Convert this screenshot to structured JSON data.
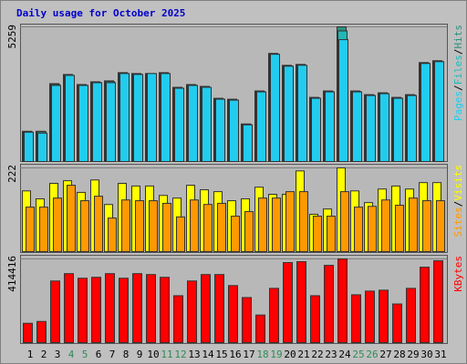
{
  "chart_data": [
    {
      "type": "bar",
      "title": "Daily usage for October 2025",
      "title_color": "#0000cc",
      "ylim": [
        0,
        5259
      ],
      "yticks": [
        5259
      ],
      "grid": true,
      "legend_separator": "/",
      "series": [
        {
          "name": "Hits",
          "color": "#2f8f7f",
          "values": [
            1181,
            1181,
            3041,
            3399,
            3006,
            3113,
            3149,
            3471,
            3435,
            3435,
            3471,
            2898,
            3006,
            2934,
            2469,
            2433,
            1467,
            2755,
            4222,
            3757,
            3793,
            2505,
            2755,
            5259,
            2755,
            2612,
            2684,
            2505,
            2612,
            3864,
            3936
          ]
        },
        {
          "name": "Files",
          "color": "#1fb8b8",
          "values": [
            1160,
            1160,
            3010,
            3360,
            2980,
            3090,
            3120,
            3440,
            3410,
            3410,
            3440,
            2870,
            2980,
            2900,
            2440,
            2400,
            1450,
            2730,
            4190,
            3730,
            3760,
            2480,
            2730,
            5100,
            2730,
            2590,
            2660,
            2480,
            2590,
            3840,
            3900
          ]
        },
        {
          "name": "Pages",
          "color": "#22ccee",
          "values": [
            1145,
            1109,
            2970,
            3363,
            2970,
            3077,
            3077,
            3435,
            3399,
            3435,
            3435,
            2862,
            2970,
            2898,
            2433,
            2397,
            1431,
            2719,
            4186,
            3721,
            3757,
            2469,
            2719,
            4759,
            2719,
            2576,
            2648,
            2469,
            2576,
            3828,
            3900
          ]
        }
      ]
    },
    {
      "type": "bar",
      "ylim": [
        0,
        222
      ],
      "yticks": [
        222
      ],
      "grid": true,
      "legend_separator": "/",
      "series": [
        {
          "name": "Visits",
          "color": "#ffff00",
          "values": [
            161,
            140,
            181,
            188,
            157,
            190,
            125,
            181,
            174,
            174,
            149,
            142,
            176,
            164,
            159,
            135,
            140,
            171,
            152,
            152,
            214,
            99,
            113,
            222,
            161,
            130,
            166,
            174,
            166,
            183,
            183
          ]
        },
        {
          "name": "Sites",
          "color": "#ff9900",
          "values": [
            118,
            118,
            142,
            176,
            135,
            147,
            89,
            137,
            135,
            135,
            128,
            92,
            137,
            125,
            128,
            94,
            106,
            142,
            142,
            159,
            159,
            94,
            94,
            159,
            118,
            120,
            137,
            123,
            142,
            135,
            135
          ]
        }
      ]
    },
    {
      "type": "bar",
      "ylim": [
        0,
        414416
      ],
      "yticks": [
        414416
      ],
      "grid": true,
      "categories": [
        "1",
        "2",
        "3",
        "4",
        "5",
        "6",
        "7",
        "8",
        "9",
        "10",
        "11",
        "12",
        "13",
        "14",
        "15",
        "16",
        "17",
        "18",
        "19",
        "20",
        "21",
        "22",
        "23",
        "24",
        "25",
        "26",
        "27",
        "28",
        "29",
        "30",
        "31"
      ],
      "category_colors": [
        "#000000",
        "#000000",
        "#000000",
        "#2e8b57",
        "#2e8b57",
        "#000000",
        "#000000",
        "#000000",
        "#000000",
        "#000000",
        "#2e8b57",
        "#2e8b57",
        "#000000",
        "#000000",
        "#000000",
        "#000000",
        "#000000",
        "#2e8b57",
        "#2e8b57",
        "#000000",
        "#000000",
        "#000000",
        "#000000",
        "#000000",
        "#2e8b57",
        "#2e8b57",
        "#000000",
        "#000000",
        "#000000",
        "#000000",
        "#000000"
      ],
      "series": [
        {
          "name": "KBytes",
          "color": "#ff0000",
          "values": [
            95634,
            104742,
            305118,
            341550,
            318780,
            323334,
            341550,
            318780,
            341550,
            336996,
            323334,
            232254,
            305118,
            336996,
            336996,
            282348,
            223146,
            136620,
            268686,
            396198,
            400752,
            232254,
            382536,
            414416,
            236808,
            255024,
            259578,
            191268,
            268686,
            373428,
            405306
          ]
        }
      ]
    }
  ]
}
